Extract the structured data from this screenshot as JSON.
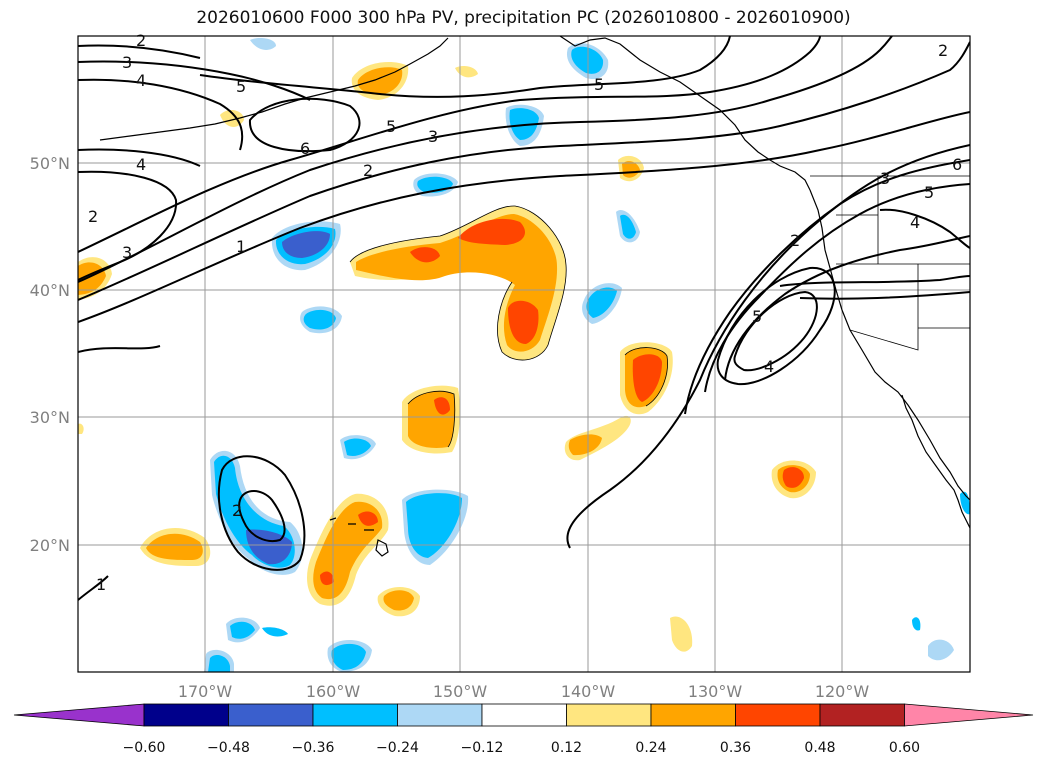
{
  "title": "2026010600 F000 300 hPa PV, precipitation PC (2026010800 - 2026010900)",
  "map": {
    "lon_range": [
      -180,
      -110
    ],
    "lat_range": [
      10,
      60
    ],
    "lat_labels": [
      "50°N",
      "40°N",
      "30°N",
      "20°N"
    ],
    "lon_labels": [
      "170°W",
      "160°W",
      "150°W",
      "140°W",
      "130°W",
      "120°W"
    ],
    "pv_contour_labels": [
      "1",
      "2",
      "3",
      "4",
      "5",
      "6"
    ]
  },
  "colorbar": {
    "ticks": [
      "−0.60",
      "−0.48",
      "−0.36",
      "−0.24",
      "−0.12",
      "0.12",
      "0.24",
      "0.36",
      "0.48",
      "0.60"
    ],
    "colors": [
      "#9932cc",
      "#00008b",
      "#3a5fcd",
      "#00bfff",
      "#add8f5",
      "#ffffff",
      "#ffe680",
      "#ffa500",
      "#ff4500",
      "#b22222",
      "#ff85a8"
    ]
  },
  "colors": {
    "light_blue": "#add8f5",
    "cyan": "#00bfff",
    "mid_blue": "#3a5fcd",
    "yellow": "#ffe680",
    "orange": "#ffa500",
    "red_orange": "#ff4500"
  }
}
